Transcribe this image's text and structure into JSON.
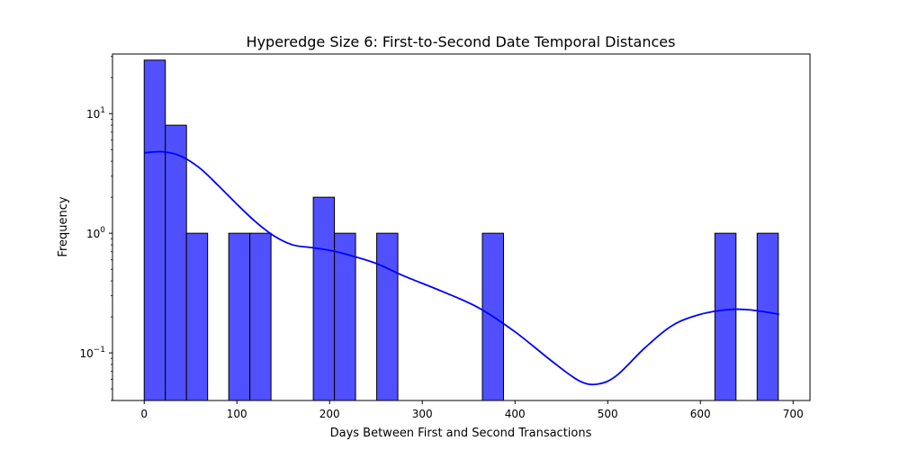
{
  "chart_data": {
    "type": "bar",
    "title": "Hyperedge Size 6: First-to-Second Date Temporal Distances",
    "xlabel": "Days Between First and Second Transactions",
    "ylabel": "Frequency",
    "xlim": [
      -34.2,
      718.2
    ],
    "ylim": [
      0.04,
      31.5
    ],
    "yscale": "log",
    "grid": false,
    "xticks": [
      0,
      100,
      200,
      300,
      400,
      500,
      600,
      700
    ],
    "xtick_labels": [
      "0",
      "100",
      "200",
      "300",
      "400",
      "500",
      "600",
      "700"
    ],
    "yticks": [
      0.1,
      1,
      10
    ],
    "ytick_labels": [
      {
        "base": "10",
        "exp": "−1"
      },
      {
        "base": "10",
        "exp": "0"
      },
      {
        "base": "10",
        "exp": "1"
      }
    ],
    "bins": [
      {
        "x0": 0,
        "x1": 22.8,
        "count": 28
      },
      {
        "x0": 22.8,
        "x1": 45.6,
        "count": 8
      },
      {
        "x0": 45.6,
        "x1": 68.4,
        "count": 1
      },
      {
        "x0": 91.2,
        "x1": 114.0,
        "count": 1
      },
      {
        "x0": 114.0,
        "x1": 136.8,
        "count": 1
      },
      {
        "x0": 182.4,
        "x1": 205.2,
        "count": 2
      },
      {
        "x0": 205.2,
        "x1": 228.0,
        "count": 1
      },
      {
        "x0": 250.8,
        "x1": 273.6,
        "count": 1
      },
      {
        "x0": 364.8,
        "x1": 387.6,
        "count": 1
      },
      {
        "x0": 615.6,
        "x1": 638.4,
        "count": 1
      },
      {
        "x0": 661.2,
        "x1": 684.0,
        "count": 1
      }
    ],
    "kde": {
      "x": [
        0,
        20,
        40,
        60,
        80,
        100,
        120,
        140,
        160,
        180,
        200,
        220,
        250,
        280,
        320,
        360,
        400,
        440,
        470,
        490,
        510,
        540,
        570,
        600,
        630,
        650,
        670,
        685
      ],
      "y": [
        4.7,
        4.8,
        4.4,
        3.5,
        2.5,
        1.75,
        1.25,
        0.95,
        0.8,
        0.76,
        0.72,
        0.66,
        0.56,
        0.44,
        0.33,
        0.24,
        0.15,
        0.085,
        0.058,
        0.055,
        0.065,
        0.11,
        0.17,
        0.21,
        0.23,
        0.23,
        0.22,
        0.21
      ]
    },
    "colors": {
      "bar_fill": "#5050ff",
      "bar_edge": "#000000",
      "kde_line": "#0000ff"
    }
  }
}
